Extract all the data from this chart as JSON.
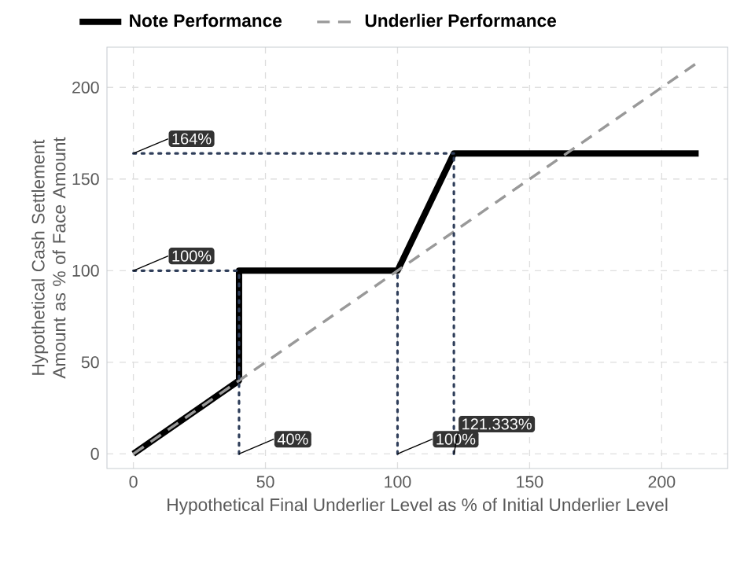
{
  "chart_data": {
    "type": "line",
    "xlabel": "Hypothetical Final Underlier Level as % of Initial Underlier Level",
    "ylabel": "Hypothetical Cash Settlement Amount as % of Face Amount",
    "xlim": [
      -10,
      225
    ],
    "ylim": [
      -8,
      222
    ],
    "xticks": [
      0,
      50,
      100,
      150,
      200
    ],
    "yticks": [
      0,
      50,
      100,
      150,
      200
    ],
    "grid": true,
    "legend": "top left",
    "marker": "none",
    "series": [
      {
        "name": "Note Performance",
        "color": "#000000",
        "line_style": "solid",
        "x": [
          0,
          40,
          40,
          100,
          121.333,
          214
        ],
        "values": [
          0,
          40,
          100,
          100,
          164,
          164
        ]
      },
      {
        "name": "Underlier Performance",
        "color": "#999999",
        "line_style": "dashed",
        "x": [
          0,
          214
        ],
        "values": [
          0,
          214
        ]
      },
      {
        "color": "#2f3e5a",
        "line_style": "dotted",
        "x": [
          0,
          121.333
        ],
        "values": [
          164,
          164
        ]
      },
      {
        "color": "#2f3e5a",
        "line_style": "dotted",
        "x": [
          0,
          40
        ],
        "values": [
          100,
          100
        ]
      },
      {
        "color": "#2f3e5a",
        "line_style": "dotted",
        "x": [
          40,
          40
        ],
        "values": [
          0,
          100
        ]
      },
      {
        "color": "#2f3e5a",
        "line_style": "dotted",
        "x": [
          100,
          100
        ],
        "values": [
          0,
          100
        ]
      },
      {
        "color": "#2f3e5a",
        "line_style": "dotted",
        "x": [
          121.333,
          121.333
        ],
        "values": [
          0,
          164
        ]
      }
    ],
    "annotations": [
      {
        "text": "164%",
        "x": 0,
        "y": 164
      },
      {
        "text": "100%",
        "x": 0,
        "y": 100
      },
      {
        "text": "40%",
        "x": 40,
        "y": 0
      },
      {
        "text": "100%",
        "x": 100,
        "y": 0
      },
      {
        "text": "121.333%",
        "x": 121.333,
        "y": 0
      }
    ]
  }
}
